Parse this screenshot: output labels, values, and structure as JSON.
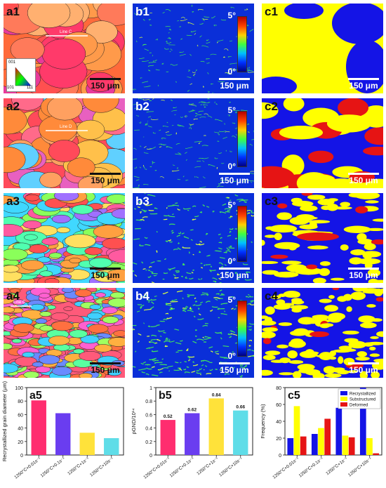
{
  "maps": {
    "ipf": [
      {
        "label": "a1",
        "scale": "150 μm",
        "line_label": "Line C"
      },
      {
        "label": "a2",
        "scale": "150 μm",
        "line_label": "Line D"
      },
      {
        "label": "a3",
        "scale": "150 μm",
        "line_label": ""
      },
      {
        "label": "a4",
        "scale": "150 μm",
        "line_label": "Line C"
      }
    ],
    "kam": [
      {
        "label": "b1",
        "scale": "150 μm"
      },
      {
        "label": "b2",
        "scale": "150 μm"
      },
      {
        "label": "b3",
        "scale": "150 μm"
      },
      {
        "label": "b4",
        "scale": "150 μm"
      }
    ],
    "cbar_top": "5°",
    "cbar_bottom": "0°",
    "phase": [
      {
        "label": "c1",
        "scale": "150 μm"
      },
      {
        "label": "c2",
        "scale": "150 μm"
      },
      {
        "label": "c3",
        "scale": "150 μm"
      },
      {
        "label": "c4",
        "scale": "150 μm"
      }
    ],
    "ipf_legend": [
      "001",
      "101",
      "111"
    ]
  },
  "chart_data": [
    {
      "type": "bar",
      "panel": "a5",
      "categories": [
        "1250°C+0.01s⁻¹",
        "1250°C+0.1s⁻¹",
        "1250°C+1s⁻¹",
        "1250°C+10s⁻¹"
      ],
      "values": [
        81,
        62,
        33,
        25
      ],
      "colors": [
        "#ff2d6f",
        "#6a3df0",
        "#ffe23a",
        "#5fdde8"
      ],
      "ylabel": "Recrystallized grain diameter (μm)",
      "xlabel": "",
      "ylim": [
        0,
        100
      ],
      "yticks": [
        0,
        20,
        40,
        60,
        80,
        100
      ]
    },
    {
      "type": "bar",
      "panel": "b5",
      "categories": [
        "1250°C+0.01s⁻¹",
        "1250°C+0.1s⁻¹",
        "1250°C+1s⁻¹",
        "1250°C+10s⁻¹"
      ],
      "values": [
        0.52,
        0.62,
        0.84,
        0.66
      ],
      "value_labels": [
        "0.52",
        "0.62",
        "0.84",
        "0.66"
      ],
      "colors": [
        "#ff2d6f",
        "#6a3df0",
        "#ffe23a",
        "#5fdde8"
      ],
      "ylabel": "ρGND/10¹⁴",
      "xlabel": "",
      "ylim": [
        0,
        1.0
      ],
      "yticks": [
        0.0,
        0.2,
        0.4,
        0.6,
        0.8,
        1.0
      ]
    },
    {
      "type": "bar",
      "panel": "c5",
      "categories": [
        "1250°C+0.01s⁻¹",
        "1250°C+0.1s⁻¹",
        "1250°C+1s⁻¹",
        "1250°C+10s⁻¹"
      ],
      "series": [
        {
          "name": "Recrystallized",
          "color": "#1414e6",
          "values": [
            20,
            25,
            56,
            80
          ]
        },
        {
          "name": "Substructured",
          "color": "#ffff00",
          "values": [
            58,
            32,
            23,
            20
          ]
        },
        {
          "name": "Deformed",
          "color": "#e61414",
          "values": [
            22,
            43,
            21,
            2
          ]
        }
      ],
      "ylabel": "Frequency (%)",
      "xlabel": "",
      "ylim": [
        0,
        80
      ],
      "yticks": [
        0,
        20,
        40,
        60,
        80
      ],
      "legend": "top-right"
    }
  ]
}
